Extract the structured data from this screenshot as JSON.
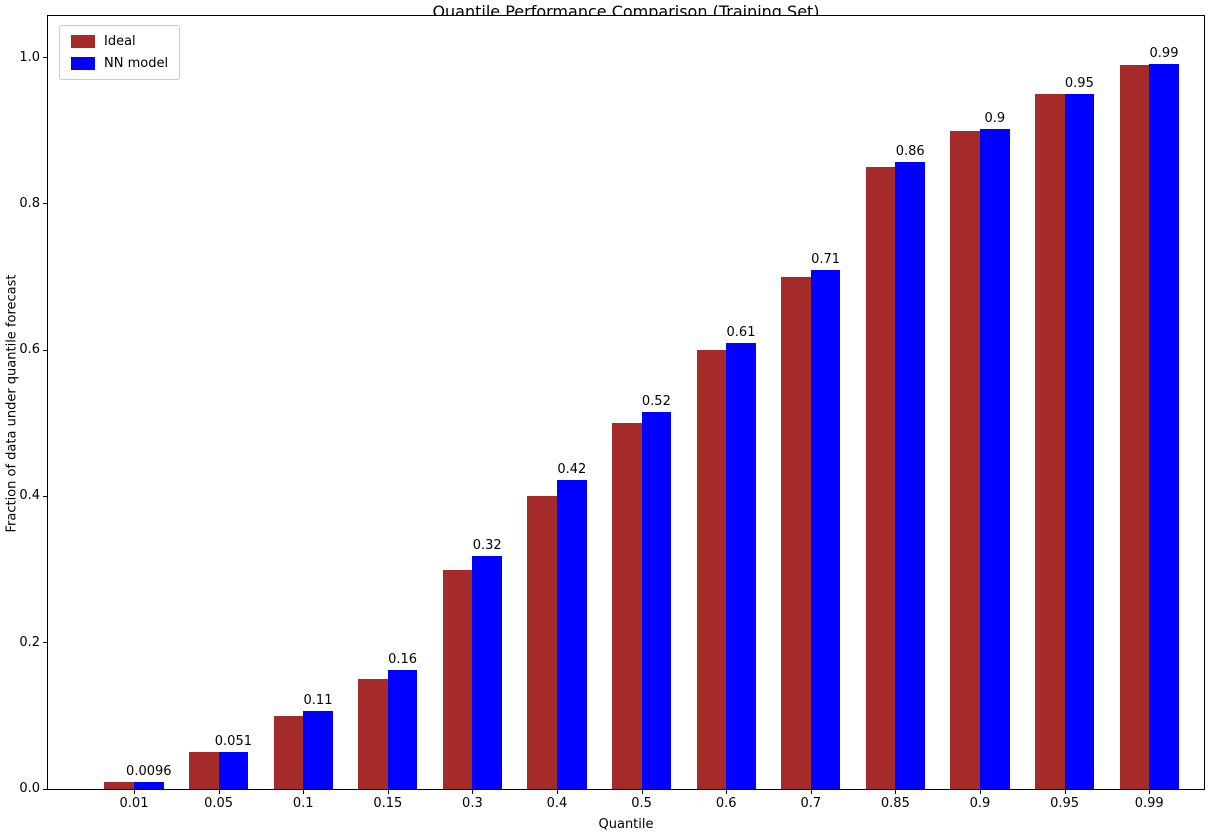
{
  "chart_data": {
    "type": "bar",
    "title": "Quantile Performance Comparison (Training Set)",
    "xlabel": "Quantile",
    "ylabel": "Fraction of data under quantile forecast",
    "categories": [
      "0.01",
      "0.05",
      "0.1",
      "0.15",
      "0.3",
      "0.4",
      "0.5",
      "0.6",
      "0.7",
      "0.85",
      "0.9",
      "0.95",
      "0.99"
    ],
    "series": [
      {
        "name": "Ideal",
        "color": "#a52a2a",
        "values": [
          0.01,
          0.05,
          0.1,
          0.15,
          0.3,
          0.4,
          0.5,
          0.6,
          0.7,
          0.85,
          0.9,
          0.95,
          0.99
        ]
      },
      {
        "name": "NN model",
        "color": "#0000ff",
        "values": [
          0.0096,
          0.051,
          0.107,
          0.163,
          0.318,
          0.422,
          0.516,
          0.61,
          0.71,
          0.858,
          0.903,
          0.95,
          0.991
        ],
        "bar_labels": [
          "0.0096",
          "0.051",
          "0.11",
          "0.16",
          "0.32",
          "0.42",
          "0.52",
          "0.61",
          "0.71",
          "0.86",
          "0.9",
          "0.95",
          "0.99"
        ]
      }
    ],
    "yticks": [
      0.0,
      0.2,
      0.4,
      0.6,
      0.8,
      1.0
    ],
    "ytick_labels": [
      "0.0",
      "0.2",
      "0.4",
      "0.6",
      "0.8",
      "1.0"
    ],
    "ylim": [
      0,
      1.057
    ],
    "grid": false,
    "legend_position": "upper left",
    "background_color": "#ffffff",
    "text_color": "#000000"
  }
}
